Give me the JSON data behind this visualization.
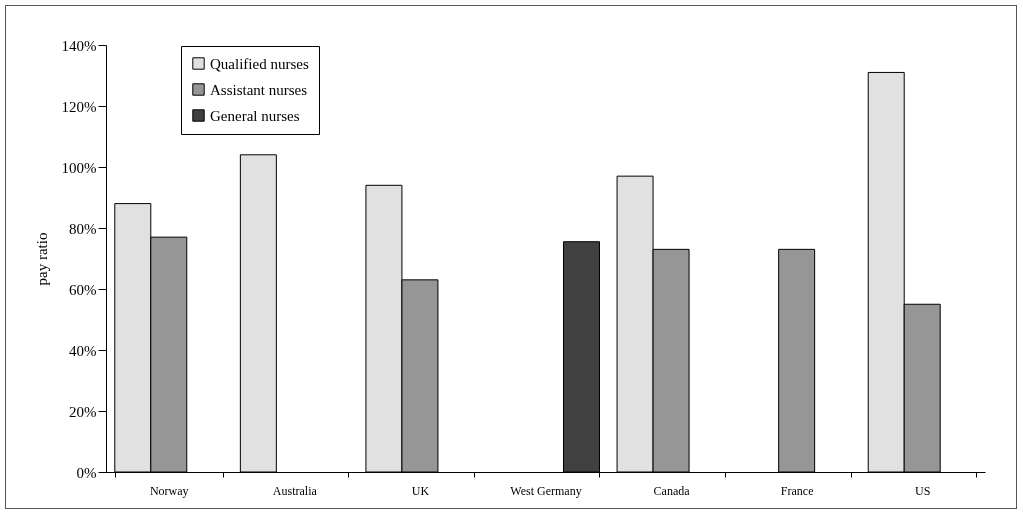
{
  "chart_data": {
    "type": "bar",
    "ylabel": "pay ratio",
    "categories": [
      "Norway",
      "Australia",
      "UK",
      "West Germany",
      "Canada",
      "France",
      "US"
    ],
    "series": [
      {
        "name": "Qualified nurses",
        "color": "#e1e1e1",
        "values": [
          88,
          104,
          94,
          null,
          97,
          null,
          131
        ]
      },
      {
        "name": "Assistant nurses",
        "color": "#969696",
        "values": [
          77,
          null,
          63,
          null,
          73,
          73,
          55
        ]
      },
      {
        "name": "General nurses",
        "color": "#404040",
        "values": [
          null,
          null,
          null,
          75.5,
          null,
          null,
          null
        ]
      }
    ],
    "ylim": [
      0,
      140
    ],
    "yticks": [
      {
        "value": 0,
        "label": "0%"
      },
      {
        "value": 20,
        "label": "20%"
      },
      {
        "value": 40,
        "label": "40%"
      },
      {
        "value": 60,
        "label": "60%"
      },
      {
        "value": 80,
        "label": "80%"
      },
      {
        "value": 100,
        "label": "100%"
      },
      {
        "value": 120,
        "label": "120%"
      },
      {
        "value": 140,
        "label": "140%"
      }
    ],
    "grid": false,
    "legend": "top left"
  }
}
